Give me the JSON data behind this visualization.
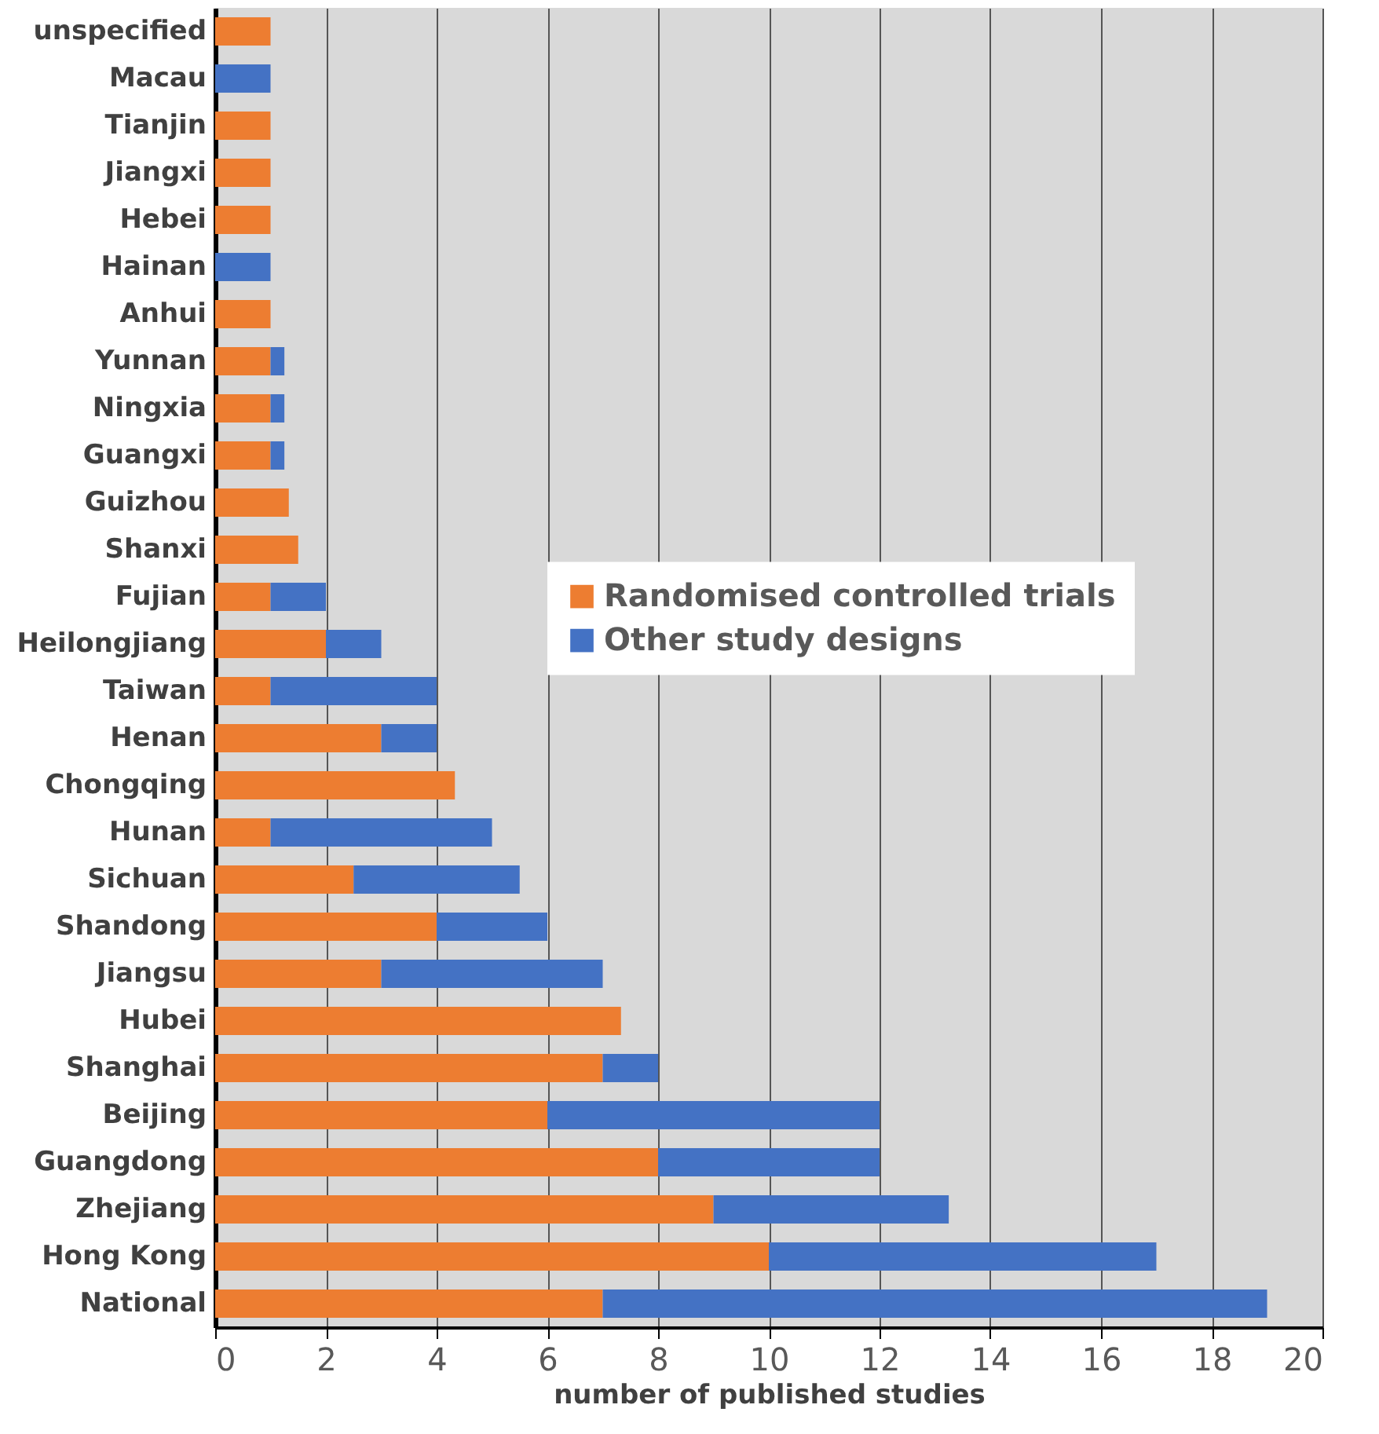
{
  "chart_data": {
    "type": "bar",
    "orientation": "horizontal",
    "stacked": true,
    "xlabel": "number of published studies",
    "categories": [
      "unspecified",
      "Macau",
      "Tianjin",
      "Jiangxi",
      "Hebei",
      "Hainan",
      "Anhui",
      "Yunnan",
      "Ningxia",
      "Guangxi",
      "Guizhou",
      "Shanxi",
      "Fujian",
      "Heilongjiang",
      "Taiwan",
      "Henan",
      "Chongqing",
      "Hunan",
      "Sichuan",
      "Shandong",
      "Jiangsu",
      "Hubei",
      "Shanghai",
      "Beijing",
      "Guangdong",
      "Zhejiang",
      "Hong Kong",
      "National"
    ],
    "series": [
      {
        "name": "Randomised controlled trials",
        "color": "#ed7d31",
        "values": [
          1,
          0,
          1,
          1,
          1,
          0,
          1,
          1,
          1,
          1,
          1.33,
          1.5,
          1,
          2,
          1,
          3,
          4.33,
          1,
          2.5,
          4,
          3,
          7.33,
          7,
          6,
          8,
          9,
          10,
          7
        ]
      },
      {
        "name": "Other study designs",
        "color": "#4472c4",
        "values": [
          0,
          1,
          0,
          0,
          0,
          1,
          0,
          0.25,
          0.25,
          0.25,
          0,
          0,
          1,
          1,
          3,
          1,
          0,
          4,
          3,
          2,
          4,
          0,
          1,
          6,
          4,
          4.25,
          7,
          12
        ]
      }
    ],
    "xlim": [
      0,
      20
    ],
    "xticks": [
      0,
      2,
      4,
      6,
      8,
      10,
      12,
      14,
      16,
      18,
      20
    ],
    "grid": "x",
    "legend": "right"
  }
}
